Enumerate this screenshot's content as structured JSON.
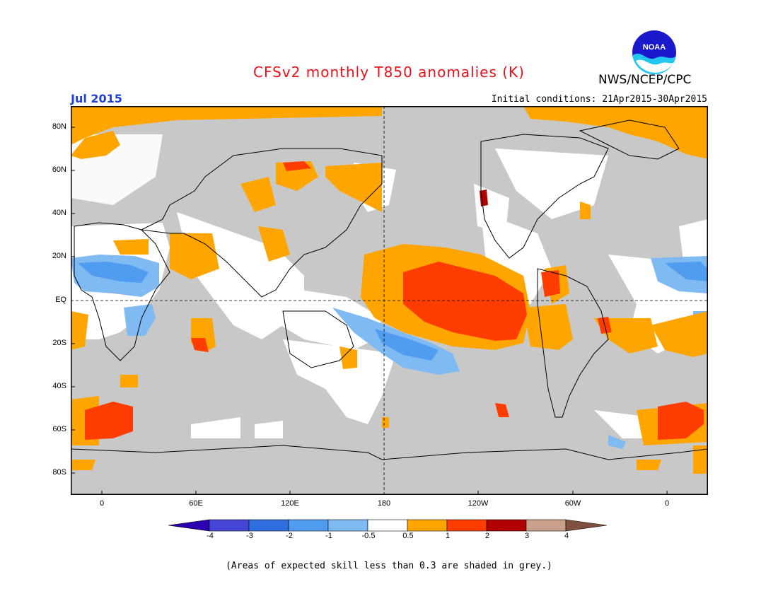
{
  "header": {
    "title": "CFSv2 monthly T850 anomalies (K)",
    "organization": "NWS/NCEP/CPC",
    "logo_text": "NOAA",
    "valid_month": "Jul 2015",
    "initial_conditions": "Initial conditions: 21Apr2015-30Apr2015"
  },
  "map": {
    "projection": "cylindrical-equidistant",
    "center_longitude": "180",
    "background_color": "#c8c8c8",
    "lat_labels": [
      "80N",
      "60N",
      "40N",
      "20N",
      "EQ",
      "20S",
      "40S",
      "60S",
      "80S"
    ],
    "lon_labels": [
      "0",
      "60E",
      "120E",
      "180",
      "120W",
      "60W",
      "0"
    ]
  },
  "colorbar": {
    "labels": [
      "-4",
      "-3",
      "-2",
      "-1",
      "-0.5",
      "0.5",
      "1",
      "2",
      "3",
      "4"
    ],
    "colors": [
      "#2a00b0",
      "#4646d6",
      "#2f6fe0",
      "#4f9cf0",
      "#7fbaf3",
      "#ffffff",
      "#ffa500",
      "#ff3d00",
      "#b00000",
      "#c8a08c",
      "#7f4f3f"
    ]
  },
  "footnote": "(Areas of expected skill less than 0.3 are shaded in grey.)"
}
